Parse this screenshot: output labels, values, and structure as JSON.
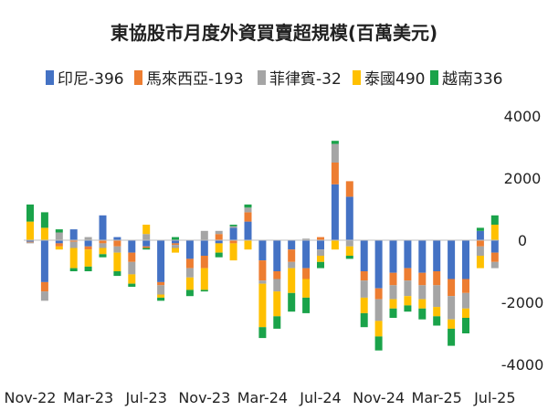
{
  "chart_data": {
    "type": "bar",
    "stacked": true,
    "title": "東協股市月度外資買賣超規模(百萬美元)",
    "legend_position": "top",
    "grid": false,
    "ylim": [
      -4000,
      4000
    ],
    "yticks": [
      4000,
      2000,
      0,
      -2000,
      -4000
    ],
    "xtick_labels": [
      "Nov-22",
      "Mar-23",
      "Jul-23",
      "Nov-23",
      "Mar-24",
      "Jul-24",
      "Nov-24",
      "Mar-25",
      "Jul-25"
    ],
    "categories": [
      "Nov-22",
      "Dec-22",
      "Jan-23",
      "Feb-23",
      "Mar-23",
      "Apr-23",
      "May-23",
      "Jun-23",
      "Jul-23",
      "Aug-23",
      "Sep-23",
      "Oct-23",
      "Nov-23",
      "Dec-23",
      "Jan-24",
      "Feb-24",
      "Mar-24",
      "Apr-24",
      "May-24",
      "Jun-24",
      "Jul-24",
      "Aug-24",
      "Sep-24",
      "Oct-24",
      "Nov-24",
      "Dec-24",
      "Jan-25",
      "Feb-25",
      "Mar-25",
      "Apr-25",
      "May-25",
      "Jun-25",
      "Jul-25"
    ],
    "series": [
      {
        "name": "印尼-396",
        "color": "#4472C4",
        "values": [
          -50,
          -1350,
          -100,
          350,
          -200,
          800,
          100,
          -400,
          -200,
          -1350,
          -100,
          -600,
          -500,
          -100,
          400,
          600,
          -650,
          -1000,
          -300,
          -900,
          -300,
          1800,
          1400,
          -1000,
          -1550,
          -1050,
          -900,
          -1050,
          -1000,
          -1250,
          -1250,
          300,
          -400
        ]
      },
      {
        "name": "馬來西亞-193",
        "color": "#ED7D31",
        "values": [
          -20,
          -300,
          -100,
          -50,
          -100,
          -100,
          -200,
          -300,
          -50,
          -100,
          -50,
          -300,
          -400,
          200,
          -100,
          300,
          -650,
          -250,
          -400,
          -350,
          100,
          700,
          500,
          -300,
          -350,
          -400,
          -400,
          -400,
          -450,
          -550,
          -450,
          -200,
          -300
        ]
      },
      {
        "name": "菲律賓-32",
        "color": "#A5A5A5",
        "values": [
          -30,
          -300,
          250,
          -200,
          100,
          -150,
          -200,
          -400,
          200,
          -300,
          -100,
          -300,
          300,
          100,
          50,
          150,
          -100,
          -400,
          -200,
          50,
          -200,
          600,
          -200,
          -550,
          -700,
          -450,
          -500,
          -450,
          -700,
          -750,
          -500,
          -300,
          -200
        ]
      },
      {
        "name": "泰國490",
        "color": "#FFC000",
        "values": [
          600,
          400,
          -100,
          -650,
          -550,
          -200,
          -600,
          -300,
          300,
          -100,
          -150,
          -400,
          -700,
          -300,
          -550,
          -300,
          -1400,
          -800,
          -800,
          -600,
          -200,
          -300,
          -300,
          -500,
          -500,
          -300,
          -300,
          -300,
          -300,
          -300,
          -300,
          -400,
          500
        ]
      },
      {
        "name": "越南336",
        "color": "#1AA34A",
        "values": [
          550,
          500,
          100,
          -100,
          -150,
          -100,
          -150,
          -100,
          -50,
          -100,
          100,
          -200,
          -50,
          -150,
          50,
          100,
          -350,
          -400,
          -600,
          -500,
          -200,
          100,
          -100,
          -450,
          -450,
          -300,
          -200,
          -350,
          -300,
          -550,
          -500,
          100,
          300
        ]
      }
    ]
  }
}
